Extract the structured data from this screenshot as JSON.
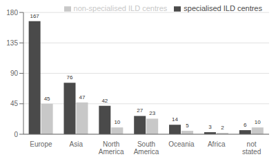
{
  "chart_data": {
    "type": "bar",
    "categories": [
      "Europe",
      "Asia",
      "North America",
      "South America",
      "Oceania",
      "Africa",
      "not stated"
    ],
    "series": [
      {
        "name": "specialised ILD centres",
        "color": "#4a4a4a",
        "values": [
          167,
          76,
          42,
          27,
          14,
          3,
          6
        ]
      },
      {
        "name": "non-specialised ILD centres",
        "color": "#c8c8c8",
        "values": [
          45,
          47,
          10,
          23,
          5,
          2,
          10
        ]
      }
    ],
    "ylim": [
      0,
      180
    ],
    "yticks": [
      0,
      45,
      90,
      135,
      180
    ],
    "grid": true,
    "legend": "top",
    "data_labels": true
  }
}
